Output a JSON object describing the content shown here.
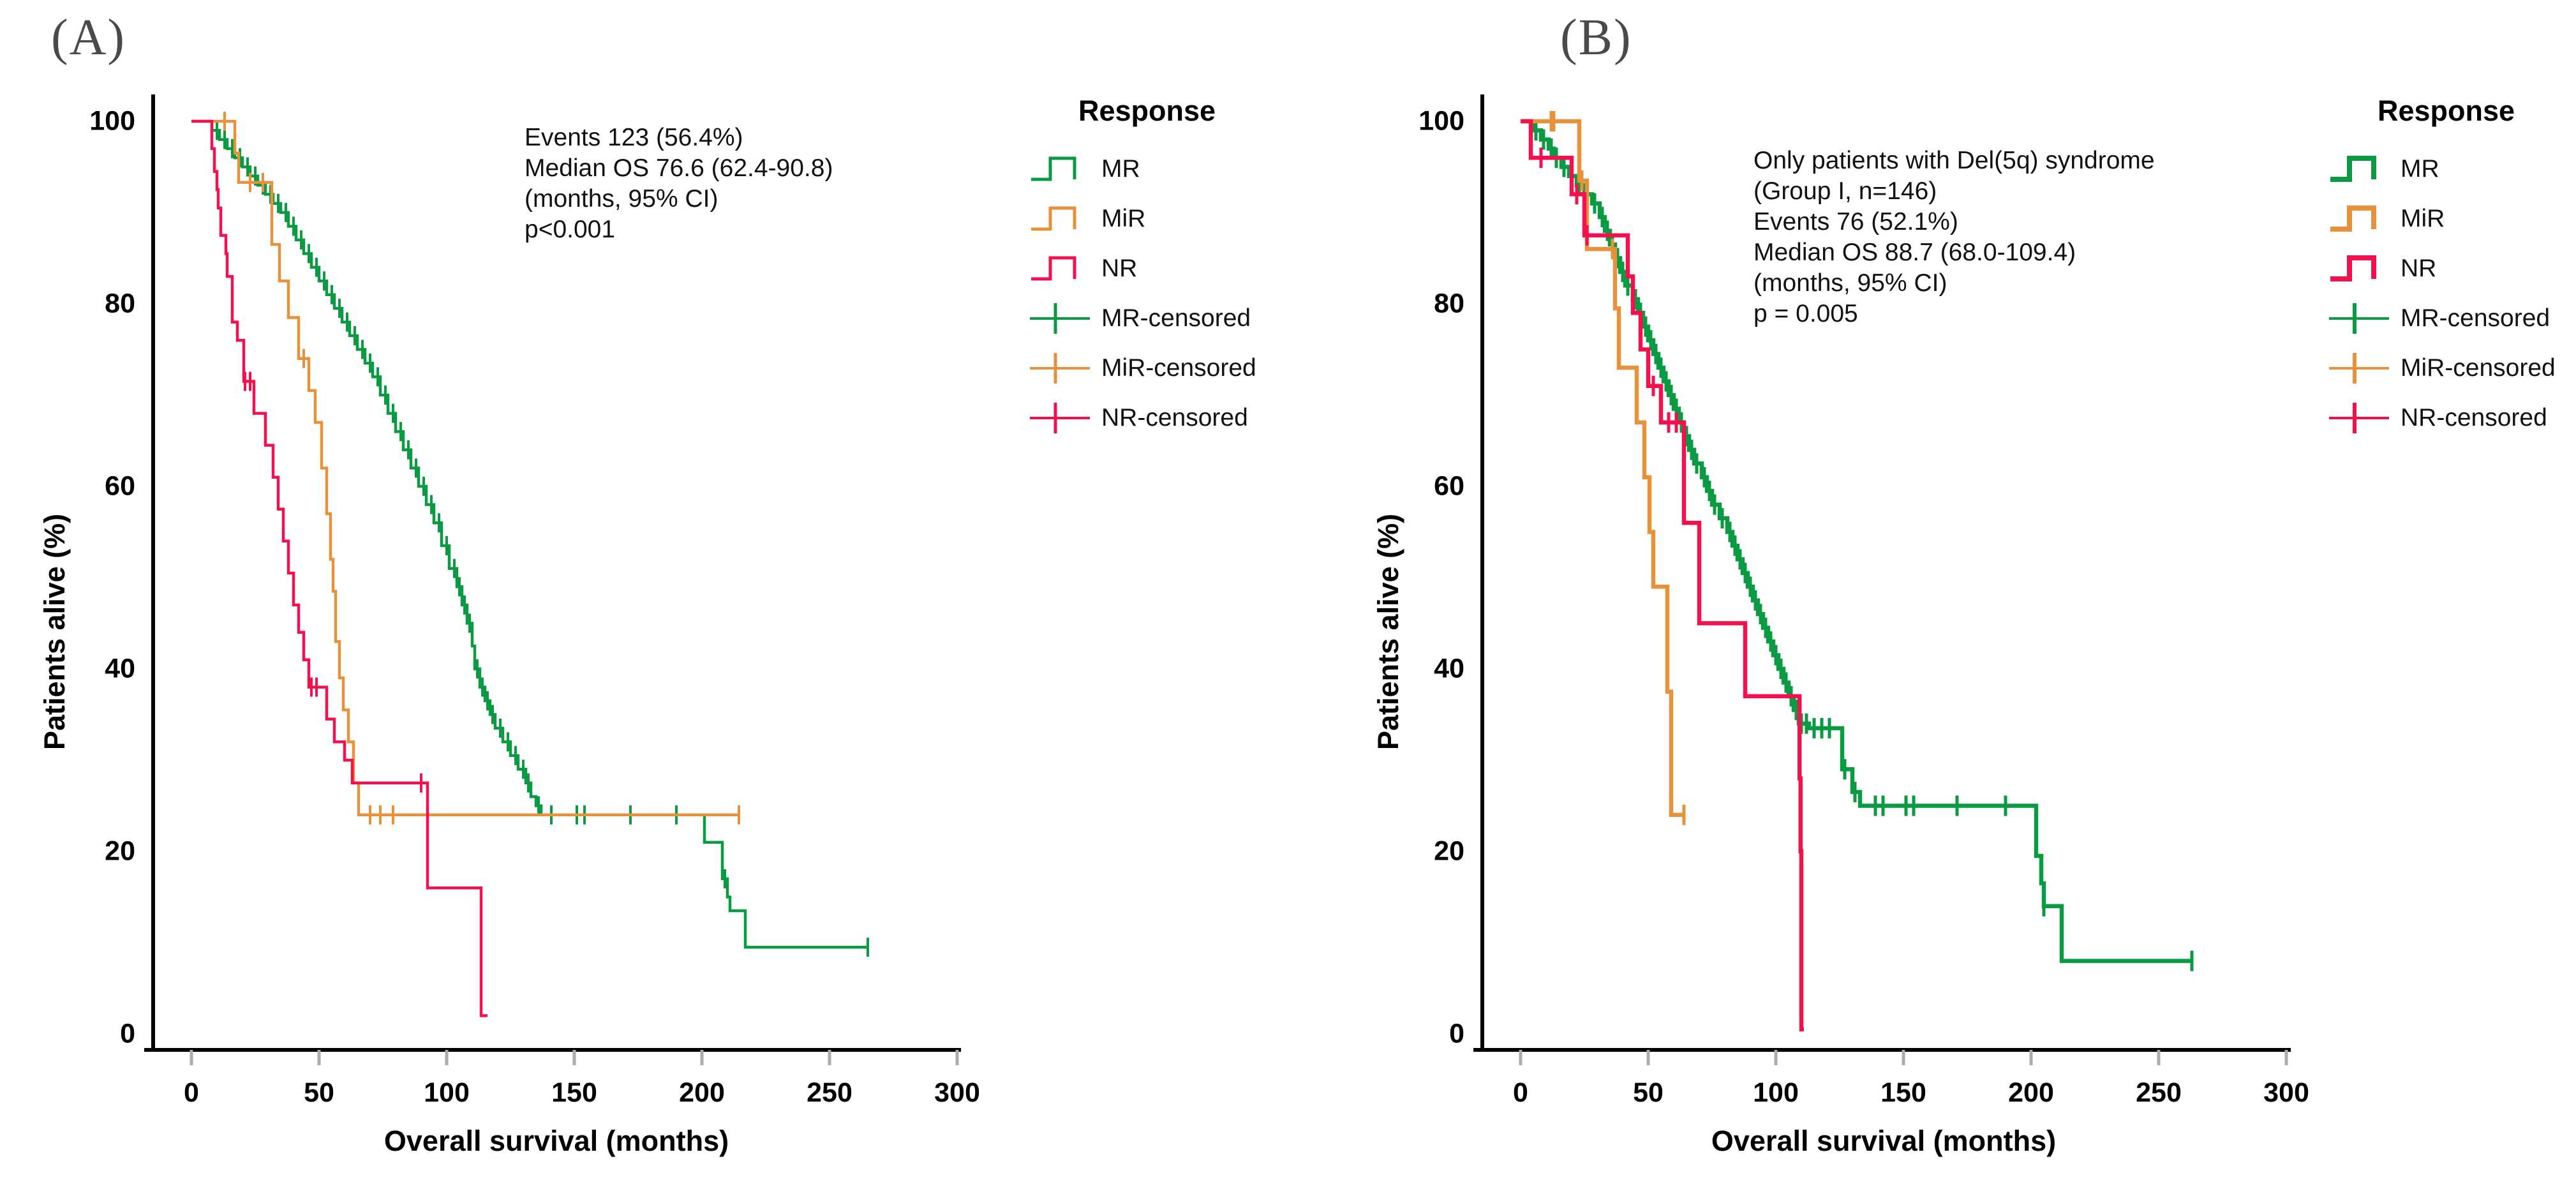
{
  "figure": {
    "panel_letters": [
      "(A)",
      "(B)"
    ]
  },
  "panels": [
    {
      "letter": "(A)",
      "annotation": [
        "Events 123 (56.4%)",
        "Median OS 76.6 (62.4-90.8)",
        "(months, 95% CI)",
        "p<0.001"
      ],
      "legend": {
        "title": "Response",
        "items": [
          {
            "label": "MR"
          },
          {
            "label": "MiR"
          },
          {
            "label": "NR"
          },
          {
            "label": "MR-censored"
          },
          {
            "label": "MiR-censored"
          },
          {
            "label": "NR-censored"
          }
        ]
      },
      "xlabel": "Overall survival (months)",
      "ylabel": "Patients alive (%)"
    },
    {
      "letter": "(B)",
      "annotation": [
        "Only patients with Del(5q) syndrome",
        "(Group I, n=146)",
        "Events 76 (52.1%)",
        "Median OS 88.7 (68.0-109.4)",
        "(months, 95% CI)",
        "p = 0.005"
      ],
      "legend": {
        "title": "Response",
        "items": [
          {
            "label": "MR"
          },
          {
            "label": "MiR"
          },
          {
            "label": "NR"
          },
          {
            "label": "MR-censored"
          },
          {
            "label": "MiR-censored"
          },
          {
            "label": "NR-censored"
          }
        ]
      },
      "xlabel": "Overall survival (months)",
      "ylabel": "Patients alive (%)"
    }
  ],
  "chart_data": [
    {
      "type": "line",
      "subtype": "kaplan-meier-step",
      "panel": "A",
      "xlabel": "Overall survival (months)",
      "ylabel": "Patients alive (%)",
      "xlim": [
        0,
        300
      ],
      "ylim": [
        0,
        100
      ],
      "x_ticks": [
        0,
        50,
        100,
        150,
        200,
        250,
        300
      ],
      "y_ticks": [
        0,
        20,
        40,
        60,
        80,
        100
      ],
      "grid": false,
      "legend_position": "right",
      "annotation": [
        "Events 123 (56.4%)",
        "Median OS 76.6 (62.4-90.8)",
        "(months, 95% CI)",
        "p<0.001"
      ],
      "series": [
        {
          "name": "MR",
          "color": "#0A9A42",
          "steps": [
            [
              0,
              100
            ],
            [
              8,
              99
            ],
            [
              11,
              98
            ],
            [
              14,
              97
            ],
            [
              17,
              96
            ],
            [
              20,
              95
            ],
            [
              23,
              94
            ],
            [
              26,
              93
            ],
            [
              29,
              92
            ],
            [
              32,
              91
            ],
            [
              35,
              90
            ],
            [
              38,
              88.5
            ],
            [
              41,
              87
            ],
            [
              44,
              85.5
            ],
            [
              47,
              84
            ],
            [
              50,
              82.5
            ],
            [
              53,
              81
            ],
            [
              56,
              79.5
            ],
            [
              59,
              78
            ],
            [
              62,
              76.5
            ],
            [
              65,
              75
            ],
            [
              68,
              73.5
            ],
            [
              71,
              72
            ],
            [
              74,
              70
            ],
            [
              77,
              68
            ],
            [
              80,
              66
            ],
            [
              83,
              64
            ],
            [
              86,
              62
            ],
            [
              89,
              60
            ],
            [
              92,
              58
            ],
            [
              95,
              56
            ],
            [
              98,
              53.5
            ],
            [
              101,
              51
            ],
            [
              104,
              49
            ],
            [
              106,
              47
            ],
            [
              108,
              45
            ],
            [
              110,
              42.5
            ],
            [
              111,
              40
            ],
            [
              113,
              38
            ],
            [
              115,
              36.5
            ],
            [
              117,
              35
            ],
            [
              119,
              33.5
            ],
            [
              122,
              32
            ],
            [
              125,
              30.5
            ],
            [
              128,
              29
            ],
            [
              131,
              27.5
            ],
            [
              133,
              26
            ],
            [
              135,
              25
            ],
            [
              137,
              24
            ],
            [
              201,
              21
            ],
            [
              208,
              17
            ],
            [
              210,
              15
            ],
            [
              211,
              13.5
            ],
            [
              217,
              9.5
            ],
            [
              265,
              9.5
            ]
          ],
          "censor_months": [
            10,
            13,
            16,
            19,
            22,
            25,
            28,
            31,
            34,
            37,
            40,
            43,
            46,
            49,
            52,
            55,
            58,
            61,
            64,
            67,
            70,
            73,
            76,
            79,
            82,
            85,
            88,
            91,
            94,
            97,
            100,
            103,
            105,
            107,
            109,
            112,
            114,
            116,
            118,
            121,
            124,
            127,
            130,
            132,
            136,
            141,
            151,
            154,
            172,
            190,
            209,
            265
          ]
        },
        {
          "name": "MiR",
          "color": "#E8913B",
          "steps": [
            [
              0,
              100
            ],
            [
              17,
              96.5
            ],
            [
              18.5,
              93.3
            ],
            [
              31.5,
              86.5
            ],
            [
              34.5,
              82.5
            ],
            [
              38,
              78.5
            ],
            [
              42,
              74
            ],
            [
              46,
              70.5
            ],
            [
              48.5,
              67
            ],
            [
              51,
              62
            ],
            [
              53,
              57
            ],
            [
              54.5,
              52
            ],
            [
              55.5,
              48.5
            ],
            [
              56.5,
              43
            ],
            [
              58,
              39
            ],
            [
              59.5,
              35.5
            ],
            [
              61.5,
              32
            ],
            [
              63.5,
              27.5
            ],
            [
              65.5,
              24
            ],
            [
              214.5,
              24
            ]
          ],
          "censor_months": [
            13,
            23,
            28,
            44,
            70,
            74,
            79,
            214.5
          ]
        },
        {
          "name": "NR",
          "color": "#F2114E",
          "steps": [
            [
              0,
              100
            ],
            [
              8,
              97
            ],
            [
              9,
              94.5
            ],
            [
              10,
              92.5
            ],
            [
              10.5,
              90.5
            ],
            [
              11.5,
              87.5
            ],
            [
              13.5,
              85.5
            ],
            [
              14,
              83
            ],
            [
              16,
              78
            ],
            [
              18,
              76
            ],
            [
              20.5,
              71.5
            ],
            [
              24.5,
              68
            ],
            [
              29,
              64.5
            ],
            [
              32,
              61
            ],
            [
              34,
              57.5
            ],
            [
              36,
              54
            ],
            [
              38,
              50.5
            ],
            [
              40,
              47
            ],
            [
              42,
              44
            ],
            [
              44,
              41
            ],
            [
              46,
              38
            ],
            [
              53,
              34.5
            ],
            [
              56,
              32
            ],
            [
              60,
              30
            ],
            [
              63,
              27.5
            ],
            [
              92.5,
              16
            ],
            [
              113,
              16
            ],
            [
              113.5,
              2
            ],
            [
              116,
              2
            ]
          ],
          "censor_months": [
            21,
            23,
            47,
            49,
            90
          ]
        }
      ]
    },
    {
      "type": "line",
      "subtype": "kaplan-meier-step",
      "panel": "B",
      "xlabel": "Overall survival (months)",
      "ylabel": "Patients alive (%)",
      "xlim": [
        0,
        300
      ],
      "ylim": [
        0,
        100
      ],
      "x_ticks": [
        0,
        50,
        100,
        150,
        200,
        250,
        300
      ],
      "y_ticks": [
        0,
        20,
        40,
        60,
        80,
        100
      ],
      "grid": false,
      "legend_position": "right",
      "annotation": [
        "Only patients with Del(5q) syndrome",
        "(Group I, n=146)",
        "Events 76 (52.1%)",
        "Median OS 88.7 (68.0-109.4)",
        "(months, 95% CI)",
        "p = 0.005"
      ],
      "series": [
        {
          "name": "MR",
          "color": "#0A9A42",
          "steps": [
            [
              0,
              100
            ],
            [
              5,
              99
            ],
            [
              8,
              98
            ],
            [
              11,
              97
            ],
            [
              13,
              96
            ],
            [
              16,
              95
            ],
            [
              19,
              94
            ],
            [
              22,
              93
            ],
            [
              25,
              92
            ],
            [
              28,
              91
            ],
            [
              31,
              89.5
            ],
            [
              33,
              88
            ],
            [
              35,
              86.5
            ],
            [
              37,
              85
            ],
            [
              39,
              83.5
            ],
            [
              41,
              82
            ],
            [
              44,
              80.5
            ],
            [
              46,
              79
            ],
            [
              48,
              77.5
            ],
            [
              50,
              76
            ],
            [
              52,
              74.5
            ],
            [
              54,
              73
            ],
            [
              56,
              71.5
            ],
            [
              58,
              70
            ],
            [
              60,
              68.5
            ],
            [
              62,
              67
            ],
            [
              64,
              65.5
            ],
            [
              66,
              64
            ],
            [
              68,
              62.5
            ],
            [
              71,
              61
            ],
            [
              73,
              59.5
            ],
            [
              75,
              58
            ],
            [
              78,
              56.5
            ],
            [
              81,
              55
            ],
            [
              83,
              53.5
            ],
            [
              85,
              52
            ],
            [
              87,
              50.5
            ],
            [
              89,
              49
            ],
            [
              91,
              47.5
            ],
            [
              93,
              46
            ],
            [
              95,
              44.5
            ],
            [
              97,
              43
            ],
            [
              99,
              41.5
            ],
            [
              101,
              40
            ],
            [
              103,
              38.5
            ],
            [
              105,
              37
            ],
            [
              107,
              35.5
            ],
            [
              109,
              34
            ],
            [
              113,
              33.5
            ],
            [
              126,
              29
            ],
            [
              130,
              26.5
            ],
            [
              133,
              25
            ],
            [
              202,
              19.5
            ],
            [
              204,
              16.5
            ],
            [
              205,
              14
            ],
            [
              212,
              8
            ],
            [
              263,
              8
            ]
          ],
          "censor_months": [
            6,
            9,
            12,
            14,
            17,
            20,
            23,
            26,
            29,
            32,
            34,
            36,
            38,
            40,
            42,
            45,
            47,
            49,
            51,
            53,
            55,
            57,
            59,
            61,
            63,
            65,
            67,
            69,
            72,
            74,
            76,
            79,
            82,
            84,
            86,
            88,
            90,
            92,
            94,
            96,
            98,
            100,
            102,
            104,
            106,
            108,
            110,
            112,
            115,
            118,
            121,
            127,
            131,
            139,
            142,
            151,
            154,
            171,
            190,
            205,
            263
          ]
        },
        {
          "name": "MiR",
          "color": "#E8913B",
          "steps": [
            [
              0,
              100
            ],
            [
              23,
              93.5
            ],
            [
              26,
              86
            ],
            [
              37,
              79.5
            ],
            [
              38.5,
              73
            ],
            [
              45.5,
              67
            ],
            [
              48.5,
              61
            ],
            [
              50.5,
              55
            ],
            [
              52,
              49
            ],
            [
              57.5,
              37.5
            ],
            [
              59,
              24
            ],
            [
              64,
              24
            ]
          ],
          "censor_months": [
            12,
            13,
            24,
            36,
            64
          ]
        },
        {
          "name": "NR",
          "color": "#F2114E",
          "steps": [
            [
              0,
              100
            ],
            [
              4,
              96
            ],
            [
              20,
              92
            ],
            [
              25,
              87.5
            ],
            [
              42,
              83
            ],
            [
              44,
              79
            ],
            [
              47,
              75
            ],
            [
              50,
              71
            ],
            [
              55,
              67
            ],
            [
              64,
              56
            ],
            [
              70,
              45
            ],
            [
              87.5,
              45
            ],
            [
              88,
              37
            ],
            [
              109,
              37
            ],
            [
              109.3,
              28
            ],
            [
              109.7,
              20
            ],
            [
              110,
              0.5
            ],
            [
              111,
              0.5
            ]
          ],
          "censor_months": [
            8,
            22,
            26,
            52,
            58,
            61
          ]
        }
      ]
    }
  ]
}
